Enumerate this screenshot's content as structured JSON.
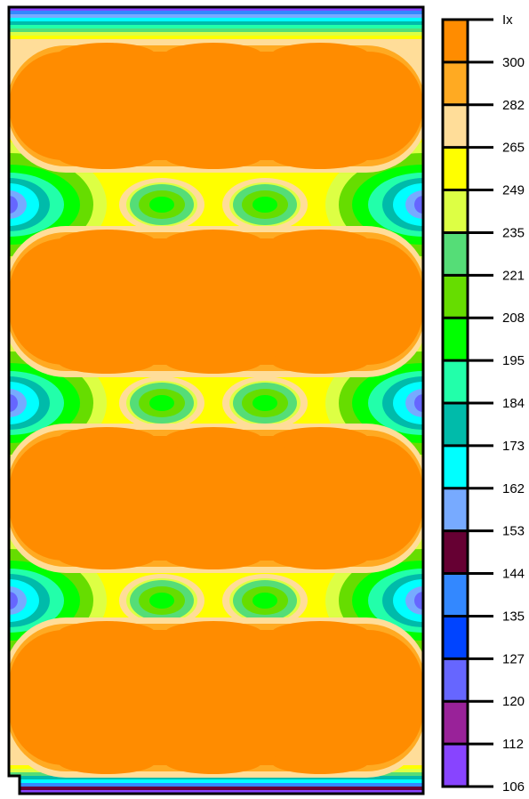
{
  "chart_data": {
    "type": "heatmap",
    "title": "",
    "legend": {
      "title": "Ix",
      "placement": "right",
      "tick_labels": [
        "300",
        "282",
        "265",
        "249",
        "235",
        "221",
        "208",
        "195",
        "184",
        "173",
        "162",
        "153",
        "144",
        "135",
        "127",
        "120",
        "112",
        "106"
      ],
      "band_colors": [
        "#FF8C00",
        "#FFAA22",
        "#FFDD99",
        "#FFFF00",
        "#DDFF44",
        "#55DD77",
        "#66DD00",
        "#00FF00",
        "#22FFAA",
        "#00BBAA",
        "#00FFFF",
        "#77AAFF",
        "#660033",
        "#3388FF",
        "#0044FF",
        "#6666FF",
        "#992299",
        "#8844FF"
      ]
    },
    "field": {
      "description_levels_top_to_bottom": [
        "#FF8C00",
        "#FFAA22",
        "#FFDD99",
        "#FFFF00",
        "#DDFF44",
        "#55DD77",
        "#66DD00",
        "#00FF00",
        "#22FFAA",
        "#00BBAA",
        "#00FFFF",
        "#77AAFF",
        "#660033",
        "#3388FF",
        "#0044FF",
        "#6666FF",
        "#992299",
        "#8844FF"
      ],
      "high_regions": 4,
      "low_bands": 3,
      "pockets_per_band": 2
    }
  }
}
